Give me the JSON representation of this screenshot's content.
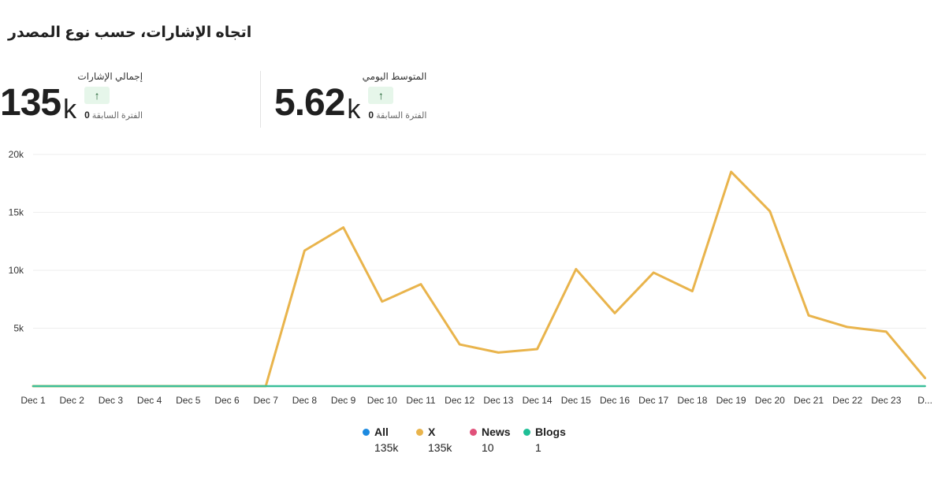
{
  "title": "اتجاه الإشارات، حسب نوع المصدر",
  "kpis": {
    "total": {
      "label": "إجمالي الإشارات",
      "value": "135",
      "unit": "k",
      "prev_label": "الفترة السابقة",
      "prev_value": "0"
    },
    "daily": {
      "label": "المتوسط اليومي",
      "value": "5.62",
      "unit": "k",
      "prev_label": "الفترة السابقة",
      "prev_value": "0"
    }
  },
  "legend": [
    {
      "name": "All",
      "total": "135k",
      "color": "#1c8ae0"
    },
    {
      "name": "X",
      "total": "135k",
      "color": "#e9b44c"
    },
    {
      "name": "News",
      "total": "10",
      "color": "#e0517a"
    },
    {
      "name": "Blogs",
      "total": "1",
      "color": "#1fbf96"
    }
  ],
  "chart_data": {
    "type": "line",
    "categories": [
      "Dec 1",
      "Dec 2",
      "Dec 3",
      "Dec 4",
      "Dec 5",
      "Dec 6",
      "Dec 7",
      "Dec 8",
      "Dec 9",
      "Dec 10",
      "Dec 11",
      "Dec 12",
      "Dec 13",
      "Dec 14",
      "Dec 15",
      "Dec 16",
      "Dec 17",
      "Dec 18",
      "Dec 19",
      "Dec 20",
      "Dec 21",
      "Dec 22",
      "Dec 23",
      "D..."
    ],
    "yticks": [
      "5k",
      "10k",
      "15k",
      "20k"
    ],
    "ytick_values": [
      5000,
      10000,
      15000,
      20000
    ],
    "ylim": [
      0,
      20000
    ],
    "grid": true,
    "series": [
      {
        "name": "X",
        "color": "#e9b44c",
        "values": [
          0,
          0,
          0,
          0,
          0,
          0,
          0,
          11700,
          13700,
          7300,
          8800,
          3600,
          2900,
          3200,
          10100,
          6300,
          9800,
          8200,
          18500,
          15100,
          6100,
          5100,
          4700,
          700
        ]
      },
      {
        "name": "Blogs",
        "color": "#3bbf9a",
        "values": [
          0,
          0,
          0,
          0,
          0,
          0,
          0,
          0,
          0,
          0,
          0,
          0,
          0,
          0,
          0,
          0,
          0,
          0,
          0,
          0,
          0,
          0,
          0,
          0
        ]
      }
    ]
  }
}
